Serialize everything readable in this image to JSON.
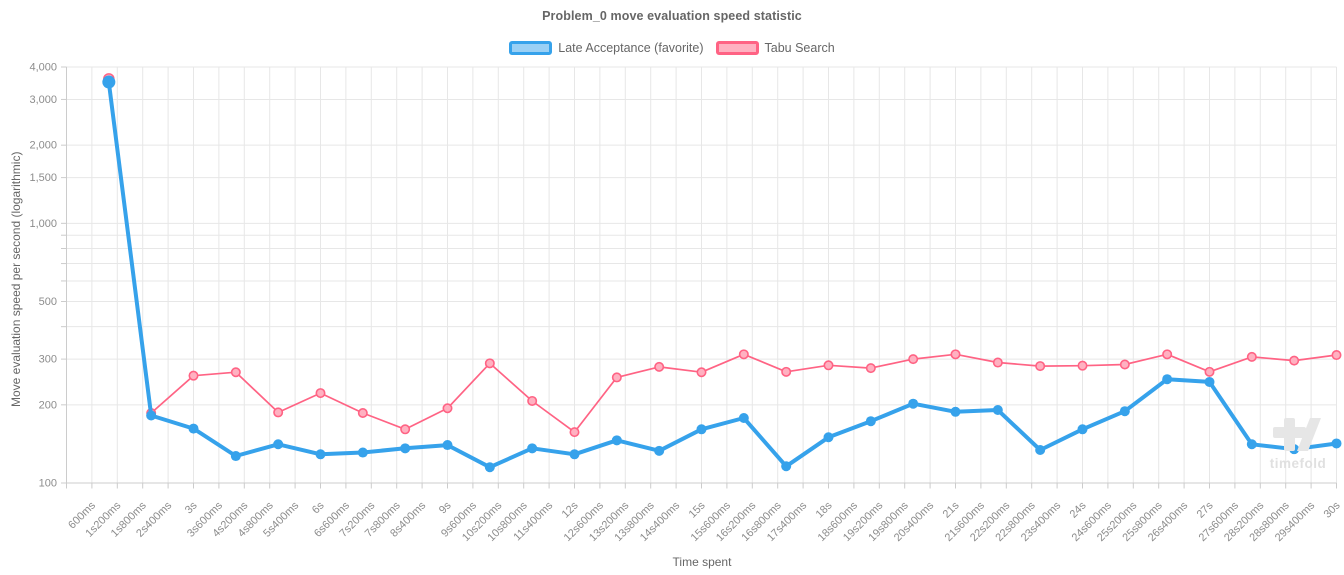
{
  "header": {
    "title": "Problem_0 move evaluation speed statistic"
  },
  "axes": {
    "x_title": "Time spent",
    "y_title": "Move evaluation speed per second (logarithmic)"
  },
  "watermark": {
    "text": "timefold"
  },
  "colors": {
    "title_text": "#666666",
    "tick_label": "#8c8c8c",
    "gridline": "#e7e7e7",
    "axis_border": "#cccccc",
    "series_blue": "#36a2eb",
    "series_blue_fill": "#9ad0f5",
    "series_pink": "#ff6384",
    "series_pink_fill": "#ffb1c1",
    "watermark": "#e6e6e6"
  },
  "chart_data": {
    "type": "line",
    "title": "Problem_0 move evaluation speed statistic",
    "xlabel": "Time spent",
    "ylabel": "Move evaluation speed per second (logarithmic)",
    "y_scale": "log",
    "ylim": [
      100,
      4000
    ],
    "xlim_seconds": [
      0,
      30
    ],
    "grid": true,
    "legend_position": "top",
    "x_ticks": [
      {
        "t": 0.6,
        "label": "600ms"
      },
      {
        "t": 1.2,
        "label": "1s200ms"
      },
      {
        "t": 1.8,
        "label": "1s800ms"
      },
      {
        "t": 2.4,
        "label": "2s400ms"
      },
      {
        "t": 3.0,
        "label": "3s"
      },
      {
        "t": 3.6,
        "label": "3s600ms"
      },
      {
        "t": 4.2,
        "label": "4s200ms"
      },
      {
        "t": 4.8,
        "label": "4s800ms"
      },
      {
        "t": 5.4,
        "label": "5s400ms"
      },
      {
        "t": 6.0,
        "label": "6s"
      },
      {
        "t": 6.6,
        "label": "6s600ms"
      },
      {
        "t": 7.2,
        "label": "7s200ms"
      },
      {
        "t": 7.8,
        "label": "7s800ms"
      },
      {
        "t": 8.4,
        "label": "8s400ms"
      },
      {
        "t": 9.0,
        "label": "9s"
      },
      {
        "t": 9.6,
        "label": "9s600ms"
      },
      {
        "t": 10.2,
        "label": "10s200ms"
      },
      {
        "t": 10.8,
        "label": "10s800ms"
      },
      {
        "t": 11.4,
        "label": "11s400ms"
      },
      {
        "t": 12.0,
        "label": "12s"
      },
      {
        "t": 12.6,
        "label": "12s600ms"
      },
      {
        "t": 13.2,
        "label": "13s200ms"
      },
      {
        "t": 13.8,
        "label": "13s800ms"
      },
      {
        "t": 14.4,
        "label": "14s400ms"
      },
      {
        "t": 15.0,
        "label": "15s"
      },
      {
        "t": 15.6,
        "label": "15s600ms"
      },
      {
        "t": 16.2,
        "label": "16s200ms"
      },
      {
        "t": 16.8,
        "label": "16s800ms"
      },
      {
        "t": 17.4,
        "label": "17s400ms"
      },
      {
        "t": 18.0,
        "label": "18s"
      },
      {
        "t": 18.6,
        "label": "18s600ms"
      },
      {
        "t": 19.2,
        "label": "19s200ms"
      },
      {
        "t": 19.8,
        "label": "19s800ms"
      },
      {
        "t": 20.4,
        "label": "20s400ms"
      },
      {
        "t": 21.0,
        "label": "21s"
      },
      {
        "t": 21.6,
        "label": "21s600ms"
      },
      {
        "t": 22.2,
        "label": "22s200ms"
      },
      {
        "t": 22.8,
        "label": "22s800ms"
      },
      {
        "t": 23.4,
        "label": "23s400ms"
      },
      {
        "t": 24.0,
        "label": "24s"
      },
      {
        "t": 24.6,
        "label": "24s600ms"
      },
      {
        "t": 25.2,
        "label": "25s200ms"
      },
      {
        "t": 25.8,
        "label": "25s800ms"
      },
      {
        "t": 26.4,
        "label": "26s400ms"
      },
      {
        "t": 27.0,
        "label": "27s"
      },
      {
        "t": 27.6,
        "label": "27s600ms"
      },
      {
        "t": 28.2,
        "label": "28s200ms"
      },
      {
        "t": 28.8,
        "label": "28s800ms"
      },
      {
        "t": 29.4,
        "label": "29s400ms"
      },
      {
        "t": 30.0,
        "label": "30s"
      }
    ],
    "y_ticks": [
      {
        "v": 100,
        "label": "100"
      },
      {
        "v": 200,
        "label": "200"
      },
      {
        "v": 300,
        "label": "300"
      },
      {
        "v": 500,
        "label": "500"
      },
      {
        "v": 1000,
        "label": "1,000"
      },
      {
        "v": 1500,
        "label": "1,500"
      },
      {
        "v": 2000,
        "label": "2,000"
      },
      {
        "v": 3000,
        "label": "3,000"
      },
      {
        "v": 4000,
        "label": "4,000"
      }
    ],
    "y_minor_gridlines": [
      400,
      600,
      700,
      800,
      900
    ],
    "x_seconds": [
      1,
      2,
      3,
      4,
      5,
      6,
      7,
      8,
      9,
      10,
      11,
      12,
      13,
      14,
      15,
      16,
      17,
      18,
      19,
      20,
      21,
      22,
      23,
      24,
      25,
      26,
      27,
      28,
      29,
      30
    ],
    "series": [
      {
        "name": "Late Acceptance (favorite)",
        "color": "#36a2eb",
        "fill_color": "#9ad0f5",
        "line_width": 4,
        "point_style": "filled",
        "values": [
          3500,
          182,
          162,
          127,
          141,
          129,
          131,
          136,
          140,
          115,
          136,
          129,
          146,
          133,
          161,
          178,
          116,
          150,
          173,
          202,
          188,
          191,
          134,
          161,
          189,
          251,
          245,
          141,
          135,
          142
        ]
      },
      {
        "name": "Tabu Search",
        "color": "#ff6384",
        "fill_color": "#ffb1c1",
        "line_width": 1.7,
        "point_style": "open",
        "values": [
          3600,
          186,
          259,
          267,
          187,
          222,
          186,
          161,
          194,
          289,
          207,
          157,
          255,
          280,
          267,
          313,
          268,
          284,
          277,
          300,
          313,
          291,
          282,
          283,
          286,
          313,
          268,
          306,
          296,
          311
        ]
      }
    ]
  }
}
